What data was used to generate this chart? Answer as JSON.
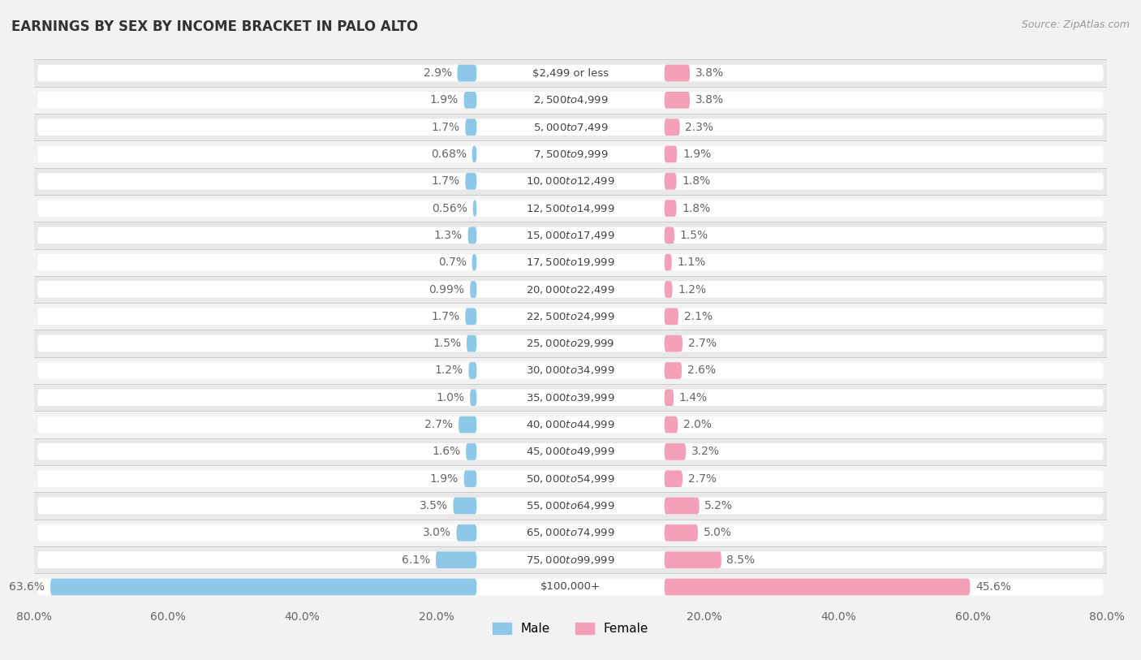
{
  "title": "EARNINGS BY SEX BY INCOME BRACKET IN PALO ALTO",
  "source": "Source: ZipAtlas.com",
  "categories": [
    "$2,499 or less",
    "$2,500 to $4,999",
    "$5,000 to $7,499",
    "$7,500 to $9,999",
    "$10,000 to $12,499",
    "$12,500 to $14,999",
    "$15,000 to $17,499",
    "$17,500 to $19,999",
    "$20,000 to $22,499",
    "$22,500 to $24,999",
    "$25,000 to $29,999",
    "$30,000 to $34,999",
    "$35,000 to $39,999",
    "$40,000 to $44,999",
    "$45,000 to $49,999",
    "$50,000 to $54,999",
    "$55,000 to $64,999",
    "$65,000 to $74,999",
    "$75,000 to $99,999",
    "$100,000+"
  ],
  "male_values": [
    2.9,
    1.9,
    1.7,
    0.68,
    1.7,
    0.56,
    1.3,
    0.7,
    0.99,
    1.7,
    1.5,
    1.2,
    1.0,
    2.7,
    1.6,
    1.9,
    3.5,
    3.0,
    6.1,
    63.6
  ],
  "female_values": [
    3.8,
    3.8,
    2.3,
    1.9,
    1.8,
    1.8,
    1.5,
    1.1,
    1.2,
    2.1,
    2.7,
    2.6,
    1.4,
    2.0,
    3.2,
    2.7,
    5.2,
    5.0,
    8.5,
    45.6
  ],
  "male_color": "#8ec8e8",
  "female_color": "#f4a0b8",
  "bg_color": "#f2f2f2",
  "row_color_odd": "#e8e8e8",
  "row_color_even": "#f2f2f2",
  "bar_bg_color": "#ffffff",
  "xlim": 80.0,
  "bar_height": 0.62,
  "label_color": "#666666",
  "title_fontsize": 12,
  "axis_fontsize": 10,
  "category_fontsize": 9.5,
  "value_fontsize": 10,
  "tick_labels": [
    "80.0%",
    "60.0%",
    "40.0%",
    "20.0%",
    "",
    "20.0%",
    "40.0%",
    "60.0%",
    "80.0%"
  ],
  "tick_vals": [
    -80,
    -60,
    -40,
    -20,
    0,
    20,
    40,
    60,
    80
  ]
}
